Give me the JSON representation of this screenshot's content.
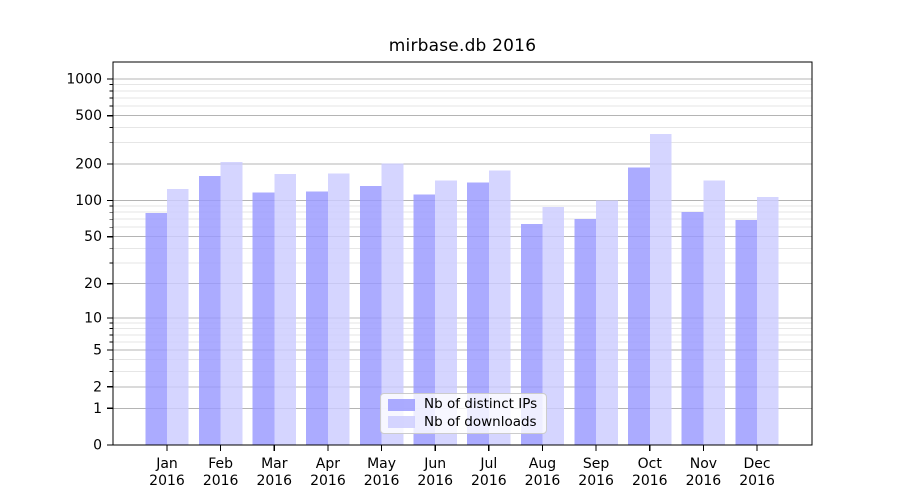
{
  "chart_data": {
    "type": "bar",
    "title": "mirbase.db 2016",
    "scale": "log1p",
    "grid": true,
    "legend_position": "lower center",
    "categories": [
      "Jan",
      "Feb",
      "Mar",
      "Apr",
      "May",
      "Jun",
      "Jul",
      "Aug",
      "Sep",
      "Oct",
      "Nov",
      "Dec"
    ],
    "category_year": "2016",
    "series": [
      {
        "name": "Nb of distinct IPs",
        "color": "#9999ff",
        "values": [
          79,
          159,
          117,
          119,
          132,
          112,
          141,
          64,
          70,
          187,
          80,
          69
        ]
      },
      {
        "name": "Nb of downloads",
        "color": "#ccccff",
        "values": [
          124,
          208,
          165,
          168,
          203,
          147,
          177,
          88,
          100,
          353,
          146,
          107
        ]
      }
    ],
    "yticks": [
      0,
      1,
      2,
      5,
      10,
      20,
      50,
      100,
      200,
      500,
      1000
    ],
    "ylim": [
      0,
      1380
    ],
    "colors": {
      "major_grid": "#b4b4b4",
      "minor_grid": "#e6e6e6",
      "axis": "#000000",
      "text": "#000000",
      "background": "#ffffff"
    }
  }
}
